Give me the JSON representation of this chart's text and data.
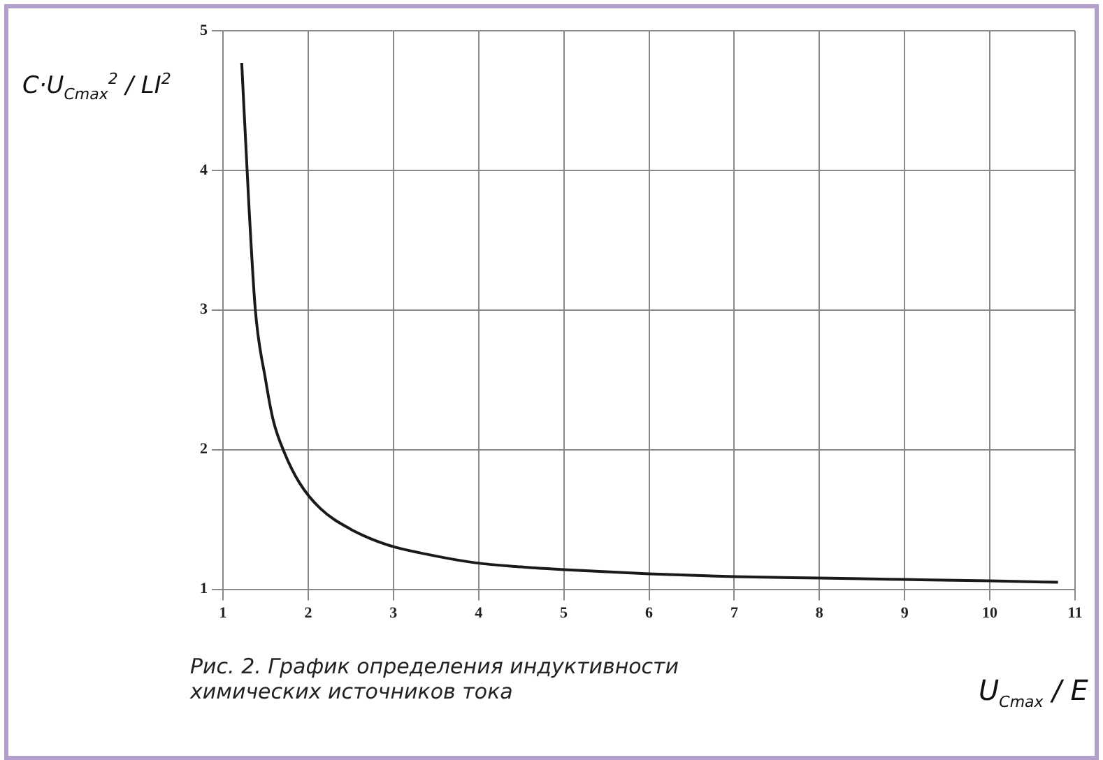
{
  "chart_data": {
    "type": "line",
    "ylabel": "C·U$_{Cmax}$$^{2}$ / LI$^{2}$",
    "xlabel": "U$_{Cmax}$ / E",
    "annotations": [
      "Рис. 2. График определения индуктивности химических источников тока"
    ],
    "x": [
      1.22,
      1.3,
      1.38,
      1.5,
      1.59,
      1.72,
      1.9,
      2.14,
      2.5,
      2.92,
      3.4,
      3.96,
      4.5,
      5.0,
      6.0,
      7.0,
      8.0,
      9.0,
      10.0,
      10.8
    ],
    "series": [
      {
        "color": "#1a1a1a",
        "values": [
          4.77,
          3.8,
          3.0,
          2.5,
          2.21,
          1.98,
          1.76,
          1.58,
          1.43,
          1.32,
          1.25,
          1.19,
          1.16,
          1.14,
          1.11,
          1.09,
          1.08,
          1.07,
          1.06,
          1.05
        ]
      }
    ],
    "xlim": [
      1,
      11
    ],
    "xticks": [
      1,
      2,
      3,
      4,
      5,
      6,
      7,
      8,
      9,
      10,
      11
    ],
    "ylim": [
      1,
      5
    ],
    "yticks": [
      1,
      2,
      3,
      4,
      5
    ],
    "grid": true,
    "legend": false,
    "marker": "none",
    "line_style": "solid"
  }
}
